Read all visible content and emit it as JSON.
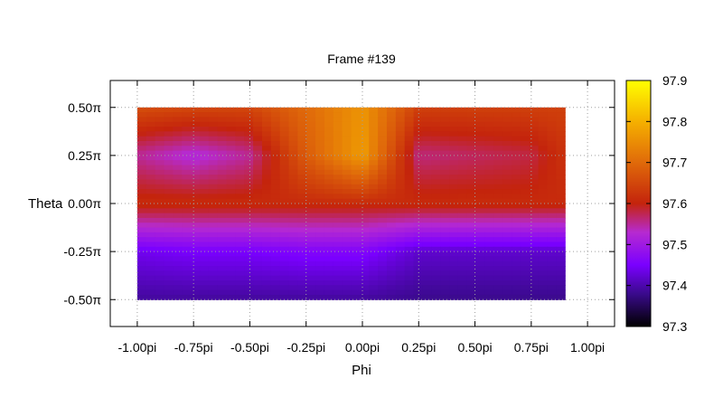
{
  "chart_data": {
    "type": "heatmap",
    "title": "Frame #139",
    "xlabel": "Phi",
    "ylabel": "Theta",
    "xlim": [
      -1.12,
      1.12
    ],
    "ylim": [
      -0.64,
      0.64
    ],
    "data_extent": {
      "x": [
        -1.0,
        0.9
      ],
      "y": [
        -0.5,
        0.5
      ]
    },
    "grid": true,
    "x_ticks": [
      {
        "value": -1.0,
        "label": "-1.00pi"
      },
      {
        "value": -0.75,
        "label": "-0.75pi"
      },
      {
        "value": -0.5,
        "label": "-0.50pi"
      },
      {
        "value": -0.25,
        "label": "-0.25pi"
      },
      {
        "value": 0.0,
        "label": "0.00pi"
      },
      {
        "value": 0.25,
        "label": "0.25pi"
      },
      {
        "value": 0.5,
        "label": "0.50pi"
      },
      {
        "value": 0.75,
        "label": "0.75pi"
      },
      {
        "value": 1.0,
        "label": "1.00pi"
      }
    ],
    "y_ticks": [
      {
        "value": 0.5,
        "label": "0.50π"
      },
      {
        "value": 0.25,
        "label": "0.25π"
      },
      {
        "value": 0.0,
        "label": "0.00π"
      },
      {
        "value": -0.25,
        "label": "-0.25π"
      },
      {
        "value": -0.5,
        "label": "-0.50π"
      }
    ],
    "colorbar": {
      "range": [
        97.3,
        97.9
      ],
      "ticks": [
        {
          "value": 97.9,
          "label": "97.9"
        },
        {
          "value": 97.8,
          "label": "97.8"
        },
        {
          "value": 97.7,
          "label": "97.7"
        },
        {
          "value": 97.6,
          "label": "97.6"
        },
        {
          "value": 97.5,
          "label": "97.5"
        },
        {
          "value": 97.4,
          "label": "97.4"
        },
        {
          "value": 97.3,
          "label": "97.3"
        }
      ],
      "stops": [
        {
          "value": 97.3,
          "color": "#000000"
        },
        {
          "value": 97.38,
          "color": "#3a0a8c"
        },
        {
          "value": 97.45,
          "color": "#7a00ff"
        },
        {
          "value": 97.53,
          "color": "#b62ad0"
        },
        {
          "value": 97.6,
          "color": "#c4240c"
        },
        {
          "value": 97.7,
          "color": "#e06a0a"
        },
        {
          "value": 97.8,
          "color": "#f5b000"
        },
        {
          "value": 97.9,
          "color": "#ffff00"
        }
      ]
    },
    "field_samples": {
      "x": [
        -1.0,
        -0.75,
        -0.5,
        -0.25,
        0.0,
        0.25,
        0.5,
        0.75,
        0.9
      ],
      "y": [
        0.5,
        0.25,
        0.0,
        -0.25,
        -0.5
      ],
      "z": [
        [
          97.66,
          97.65,
          97.65,
          97.7,
          97.76,
          97.64,
          97.64,
          97.64,
          97.64
        ],
        [
          97.55,
          97.52,
          97.55,
          97.68,
          97.77,
          97.56,
          97.57,
          97.58,
          97.62
        ],
        [
          97.61,
          97.61,
          97.61,
          97.61,
          97.61,
          97.61,
          97.61,
          97.61,
          97.61
        ],
        [
          97.44,
          97.45,
          97.45,
          97.46,
          97.46,
          97.42,
          97.42,
          97.42,
          97.42
        ],
        [
          97.39,
          97.39,
          97.39,
          97.39,
          97.39,
          97.38,
          97.38,
          97.38,
          97.38
        ]
      ]
    }
  }
}
